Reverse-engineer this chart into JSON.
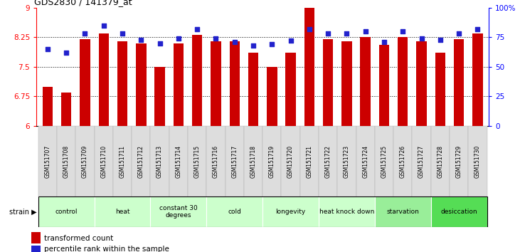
{
  "title": "GDS2830 / 141379_at",
  "samples": [
    "GSM151707",
    "GSM151708",
    "GSM151709",
    "GSM151710",
    "GSM151711",
    "GSM151712",
    "GSM151713",
    "GSM151714",
    "GSM151715",
    "GSM151716",
    "GSM151717",
    "GSM151718",
    "GSM151719",
    "GSM151720",
    "GSM151721",
    "GSM151722",
    "GSM151723",
    "GSM151724",
    "GSM151725",
    "GSM151726",
    "GSM151727",
    "GSM151728",
    "GSM151729",
    "GSM151730"
  ],
  "bar_values": [
    7.0,
    6.85,
    8.2,
    8.35,
    8.15,
    8.1,
    7.5,
    8.1,
    8.3,
    8.15,
    8.15,
    7.85,
    7.5,
    7.85,
    9.0,
    8.2,
    8.15,
    8.25,
    8.05,
    8.25,
    8.15,
    7.85,
    8.2,
    8.35
  ],
  "percentile_values": [
    65,
    62,
    78,
    85,
    78,
    73,
    70,
    74,
    82,
    74,
    71,
    68,
    69,
    72,
    82,
    78,
    78,
    80,
    71,
    80,
    74,
    73,
    78,
    82
  ],
  "ylim_left": [
    6,
    9
  ],
  "ylim_right": [
    0,
    100
  ],
  "yticks_left": [
    6,
    6.75,
    7.5,
    8.25,
    9
  ],
  "yticks_right": [
    0,
    25,
    50,
    75,
    100
  ],
  "ytick_labels_right": [
    "0",
    "25",
    "50",
    "75",
    "100%"
  ],
  "bar_color": "#cc0000",
  "dot_color": "#2222cc",
  "hline_values": [
    6.75,
    7.5,
    8.25
  ],
  "groups": [
    {
      "label": "control",
      "start": 0,
      "end": 2,
      "color": "#ccffcc"
    },
    {
      "label": "heat",
      "start": 3,
      "end": 5,
      "color": "#ccffcc"
    },
    {
      "label": "constant 30\ndegrees",
      "start": 6,
      "end": 8,
      "color": "#ccffcc"
    },
    {
      "label": "cold",
      "start": 9,
      "end": 11,
      "color": "#ccffcc"
    },
    {
      "label": "longevity",
      "start": 12,
      "end": 14,
      "color": "#ccffcc"
    },
    {
      "label": "heat knock down",
      "start": 15,
      "end": 17,
      "color": "#ccffcc"
    },
    {
      "label": "starvation",
      "start": 18,
      "end": 20,
      "color": "#99ee99"
    },
    {
      "label": "desiccation",
      "start": 21,
      "end": 23,
      "color": "#55dd55"
    }
  ],
  "legend_bar_label": "transformed count",
  "legend_dot_label": "percentile rank within the sample",
  "strain_label": "strain"
}
